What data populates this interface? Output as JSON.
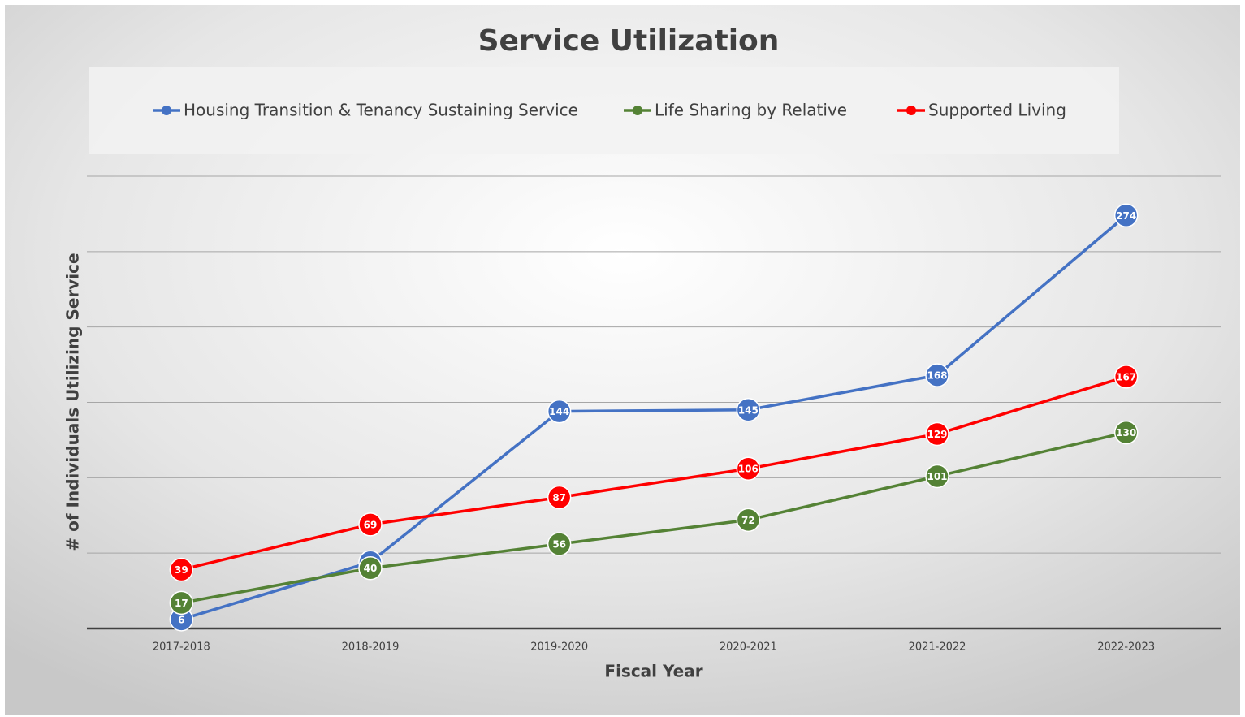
{
  "chart_data": {
    "type": "line",
    "title": "Service Utilization",
    "x_label": "Fiscal Year",
    "y_label": "# of Individuals Utilizing Service",
    "categories": [
      "2017-2018",
      "2018-2019",
      "2019-2020",
      "2020-2021",
      "2021-2022",
      "2022-2023"
    ],
    "series": [
      {
        "name": "Housing Transition & Tenancy Sustaining Service",
        "color": "#4472c4",
        "values": [
          6,
          44,
          144,
          145,
          168,
          274
        ]
      },
      {
        "name": "Life Sharing by Relative",
        "color": "#548235",
        "values": [
          17,
          40,
          56,
          72,
          101,
          130
        ]
      },
      {
        "name": "Supported Living",
        "color": "#ff0000",
        "values": [
          39,
          69,
          87,
          106,
          129,
          167
        ]
      }
    ],
    "ylim": [
      0,
      300
    ],
    "yticks": [
      0,
      50,
      100,
      150,
      200,
      250,
      300
    ],
    "grid": true
  }
}
